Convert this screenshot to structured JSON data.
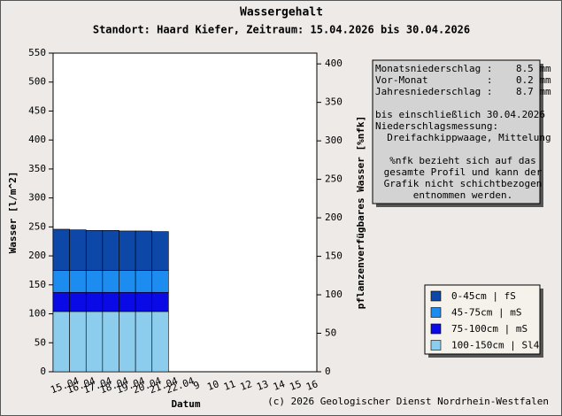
{
  "chart_data": {
    "type": "bar",
    "title": "Wassergehalt",
    "subtitle": "Standort: Haard Kiefer, Zeitraum: 15.04.2026 bis 30.04.2026",
    "ylabel": "Wasser [l/m^2]",
    "y2label": "pflanzenverfügbares Wasser [%nfk]",
    "xlabel": "Datum",
    "footer": "(c) 2026 Geologischer Dienst Nordrhein-Westfalen",
    "categories": [
      "15.04",
      "16.04",
      "17.04",
      "18.04",
      "19.04",
      "20.04",
      "21.04",
      "22.04",
      "9",
      "10",
      "11",
      "12",
      "13",
      "14",
      "15",
      "16"
    ],
    "stacked": true,
    "series": [
      {
        "name": "0-45cm | fS",
        "color": "#0d47a8",
        "values": [
          71,
          70,
          69,
          69,
          68,
          68,
          67,
          null,
          null,
          null,
          null,
          null,
          null,
          null,
          null,
          null
        ]
      },
      {
        "name": "45-75cm | mS",
        "color": "#1c8cf0",
        "values": [
          38,
          38,
          38,
          38,
          38,
          38,
          38,
          null,
          null,
          null,
          null,
          null,
          null,
          null,
          null,
          null
        ]
      },
      {
        "name": "75-100cm | mS",
        "color": "#0a0ae6",
        "values": [
          33,
          33,
          33,
          33,
          33,
          33,
          33,
          null,
          null,
          null,
          null,
          null,
          null,
          null,
          null,
          null
        ]
      },
      {
        "name": "100-150cm | Sl4",
        "color": "#8ccdee",
        "values": [
          104,
          104,
          104,
          104,
          104,
          104,
          104,
          null,
          null,
          null,
          null,
          null,
          null,
          null,
          null,
          null
        ]
      }
    ],
    "ylim": [
      0,
      550
    ],
    "yticks": [
      0,
      50,
      100,
      150,
      200,
      250,
      300,
      350,
      400,
      450,
      500,
      550
    ],
    "y2lim": [
      0,
      414
    ],
    "y2ticks": [
      0,
      50,
      100,
      150,
      200,
      250,
      300,
      350,
      400
    ],
    "grid": false,
    "legend": "lower right",
    "info": [
      [
        "Monatsniederschlag :    8.5 mm",
        "Vor-Monat          :    0.2 mm",
        "Jahresniederschlag :    8.7 mm"
      ],
      [
        "bis einschließlich 30.04.2026",
        "Niederschlagsmessung:",
        "  Dreifachkippwaage, Mittelung"
      ],
      [
        "%nfk bezieht sich auf das",
        "gesamte Profil und kann der",
        "Grafik nicht schichtbezogen",
        "entnommen werden."
      ]
    ]
  }
}
